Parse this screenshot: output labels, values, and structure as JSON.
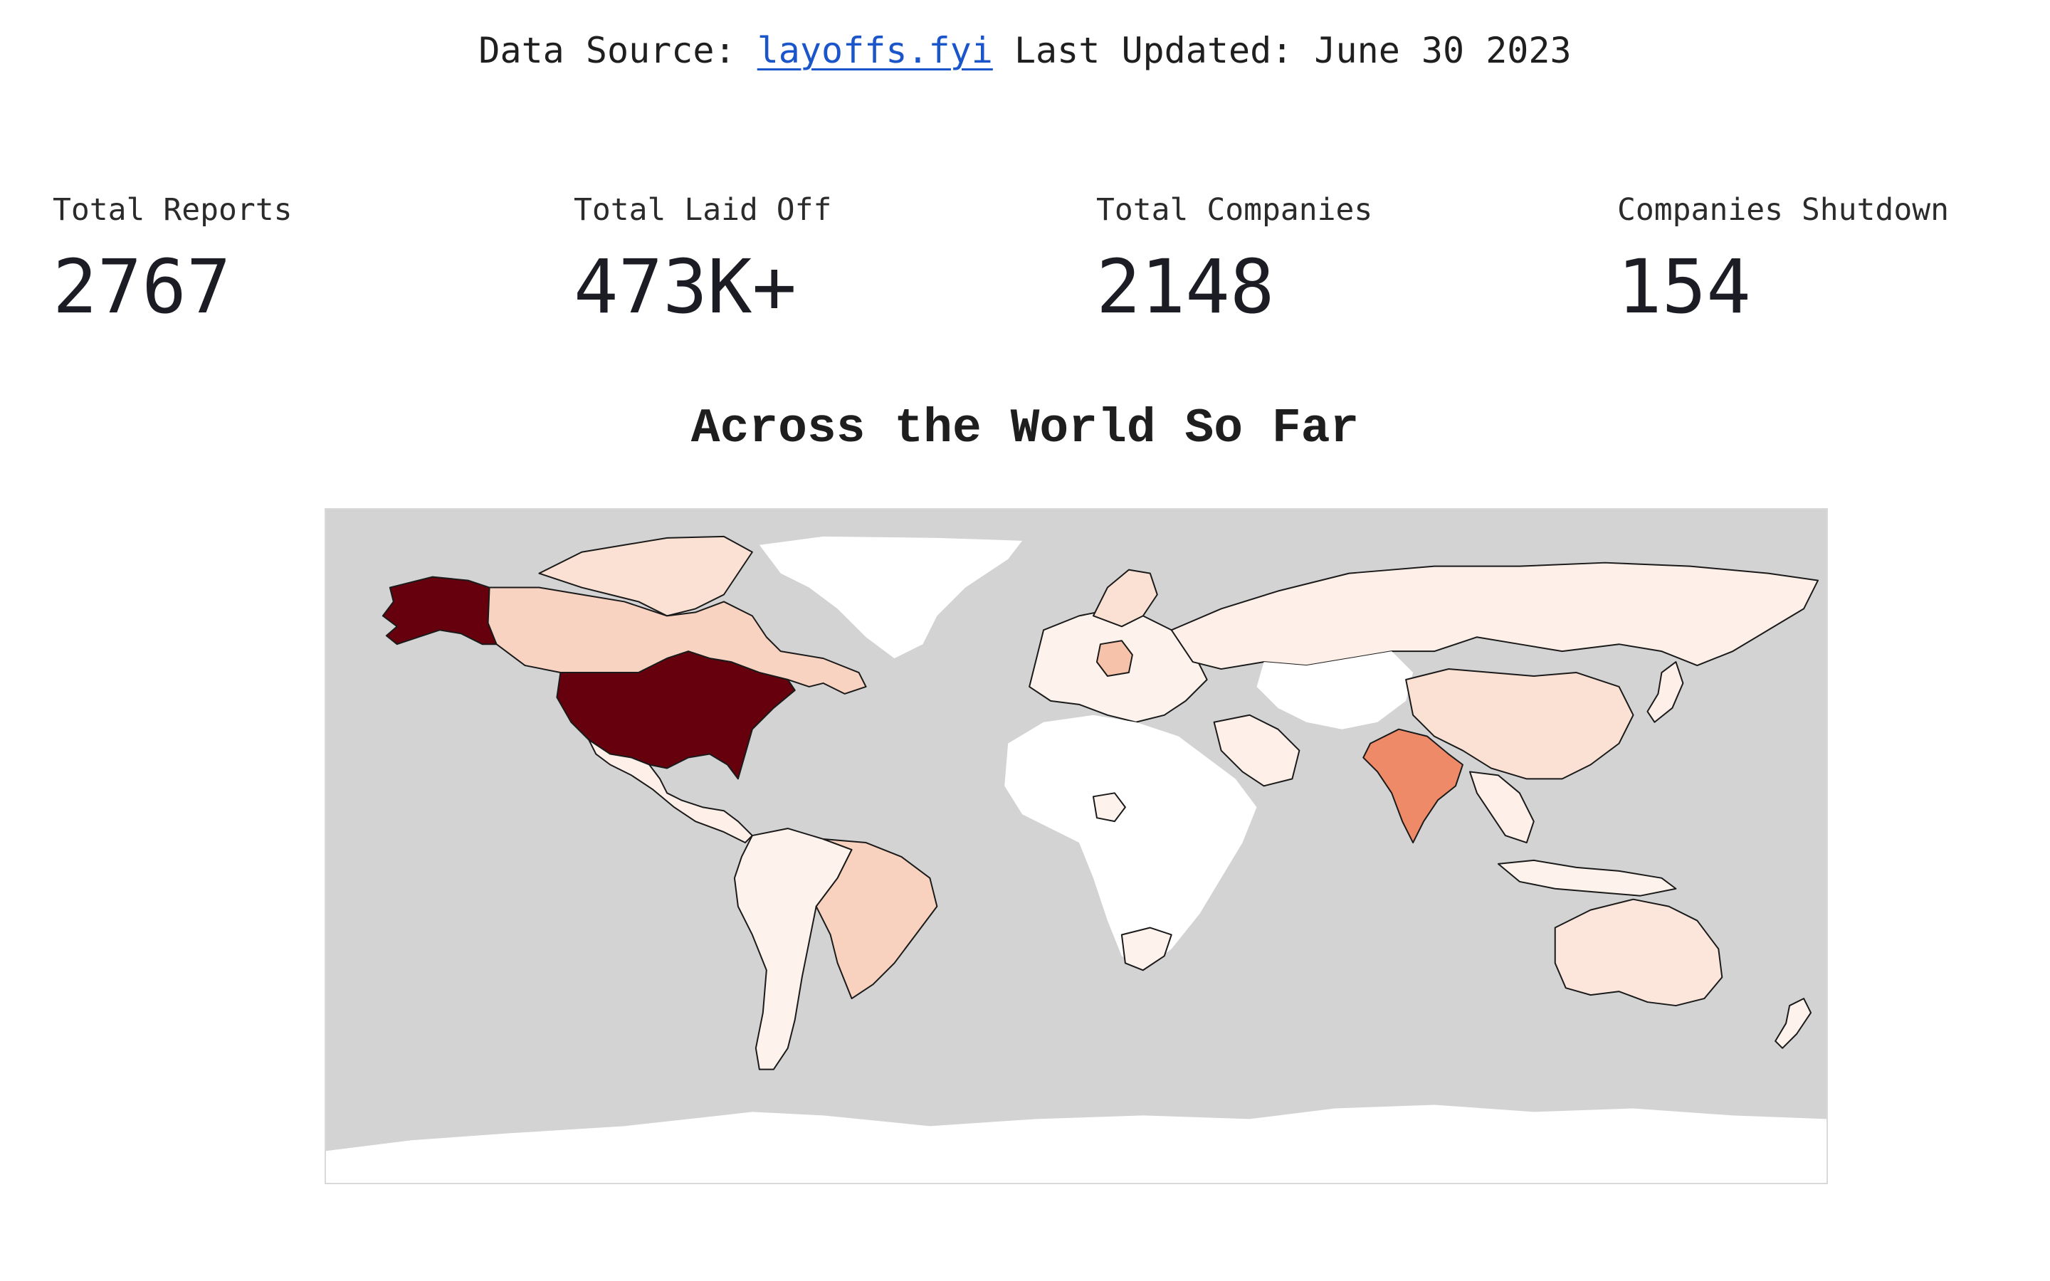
{
  "header": {
    "source_prefix": "Data Source: ",
    "source_link": "layoffs.fyi",
    "updated_text": " Last Updated: June 30 2023"
  },
  "metrics": [
    {
      "label": "Total Reports",
      "value": "2767"
    },
    {
      "label": "Total Laid Off",
      "value": "473K+"
    },
    {
      "label": "Total Companies",
      "value": "2148"
    },
    {
      "label": "Companies Shutdown",
      "value": "154"
    }
  ],
  "map": {
    "title": "Across the World So Far",
    "ocean_color": "#d3d3d3",
    "no_data_color": "#ffffff",
    "colorscale": "Reds",
    "highlighted_regions": [
      {
        "region": "United States",
        "fill": "#67000d"
      },
      {
        "region": "India",
        "fill": "#ef8a69"
      },
      {
        "region": "Canada",
        "fill": "#f8d3c2"
      },
      {
        "region": "Brazil",
        "fill": "#f8d2bf"
      },
      {
        "region": "Germany",
        "fill": "#f6c3aa"
      },
      {
        "region": "China",
        "fill": "#fbe1d4"
      },
      {
        "region": "Australia",
        "fill": "#fce6db"
      },
      {
        "region": "Russia",
        "fill": "#fef0e8"
      }
    ]
  }
}
